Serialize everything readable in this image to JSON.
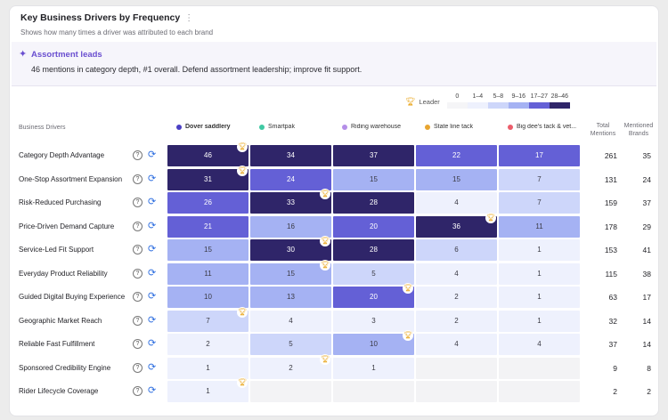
{
  "header": {
    "title": "Key Business Drivers by Frequency",
    "more_icon": "vertical-ellipsis-icon",
    "subtitle": "Shows how many times a driver was attributed to each brand"
  },
  "banner": {
    "icon": "sparkle-icon",
    "title": "Assortment leads",
    "text": "46 mentions in category depth, #1 overall. Defend assortment leadership; improve fit support."
  },
  "legend": {
    "leader_label": "Leader",
    "leader_icon": "trophy-icon",
    "buckets": [
      {
        "label": "0",
        "color": "#f5f5f7"
      },
      {
        "label": "1–4",
        "color": "#eef1fd"
      },
      {
        "label": "5–8",
        "color": "#cdd6fa"
      },
      {
        "label": "9–16",
        "color": "#a5b2f3"
      },
      {
        "label": "17–27",
        "color": "#6460d6"
      },
      {
        "label": "28–46",
        "color": "#2f2569"
      }
    ]
  },
  "table": {
    "driver_header": "Business Drivers",
    "total_header": "Total Mentions",
    "brands_header": "Mentioned Brands",
    "brands": [
      {
        "name": "Dover saddlery",
        "color": "#4a3fc4",
        "bold": true
      },
      {
        "name": "Smartpak",
        "color": "#3fc9a3",
        "bold": false
      },
      {
        "name": "Riding warehouse",
        "color": "#b48ee8",
        "bold": false
      },
      {
        "name": "State line tack",
        "color": "#e8a530",
        "bold": false
      },
      {
        "name": "Big dee's tack & vet...",
        "color": "#ec5d6b",
        "bold": false
      }
    ],
    "rows": [
      {
        "name": "Category Depth Advantage",
        "values": [
          46,
          34,
          37,
          22,
          17
        ],
        "leader": 0,
        "total": "261",
        "brands": "35"
      },
      {
        "name": "One-Stop Assortment Expansion",
        "values": [
          31,
          24,
          15,
          15,
          7
        ],
        "leader": 0,
        "total": "131",
        "brands": "24"
      },
      {
        "name": "Risk-Reduced Purchasing",
        "values": [
          26,
          33,
          28,
          4,
          7
        ],
        "leader": 1,
        "total": "159",
        "brands": "37"
      },
      {
        "name": "Price-Driven Demand Capture",
        "values": [
          21,
          16,
          20,
          36,
          11
        ],
        "leader": 3,
        "total": "178",
        "brands": "29"
      },
      {
        "name": "Service-Led Fit Support",
        "values": [
          15,
          30,
          28,
          6,
          1
        ],
        "leader": 1,
        "total": "153",
        "brands": "41"
      },
      {
        "name": "Everyday Product Reliability",
        "values": [
          11,
          15,
          5,
          4,
          1
        ],
        "leader": 1,
        "total": "115",
        "brands": "38"
      },
      {
        "name": "Guided Digital Buying Experience",
        "values": [
          10,
          13,
          20,
          2,
          1
        ],
        "leader": 2,
        "total": "63",
        "brands": "17"
      },
      {
        "name": "Geographic Market Reach",
        "values": [
          7,
          4,
          3,
          2,
          1
        ],
        "leader": 0,
        "total": "32",
        "brands": "14"
      },
      {
        "name": "Reliable Fast Fulfillment",
        "values": [
          2,
          5,
          10,
          4,
          4
        ],
        "leader": 2,
        "total": "37",
        "brands": "14"
      },
      {
        "name": "Sponsored Credibility Engine",
        "values": [
          1,
          2,
          1,
          null,
          null
        ],
        "leader": 1,
        "total": "9",
        "brands": "8"
      },
      {
        "name": "Rider Lifecycle Coverage",
        "values": [
          1,
          null,
          null,
          null,
          null
        ],
        "leader": 0,
        "total": "2",
        "brands": "2"
      }
    ],
    "row_icons": [
      "help-circle-icon",
      "refresh-icon"
    ]
  }
}
